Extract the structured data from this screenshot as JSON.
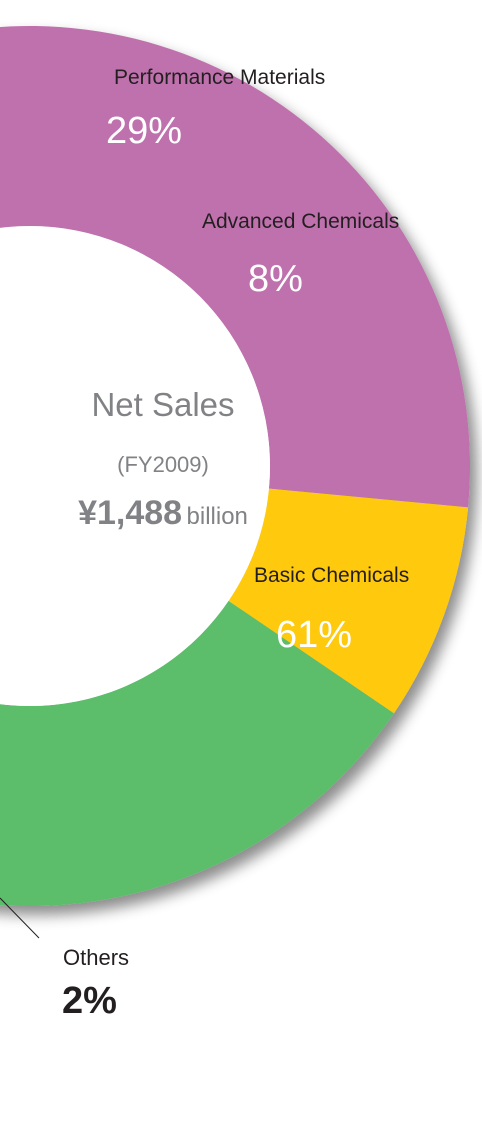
{
  "chart_data": {
    "type": "pie",
    "style": "donut",
    "categories": [
      "Performance Materials",
      "Advanced Chemicals",
      "Basic Chemicals",
      "Others"
    ],
    "values": [
      29,
      8,
      61,
      2
    ],
    "value_labels": [
      "29%",
      "8%",
      "61%",
      "2%"
    ],
    "colors": [
      "#bf71ad",
      "#ffc90e",
      "#5bbd6b",
      "#7f8084"
    ],
    "center": {
      "title": "Net Sales",
      "period": "(FY2009)",
      "amount": "¥1,488",
      "unit": "billion"
    }
  }
}
